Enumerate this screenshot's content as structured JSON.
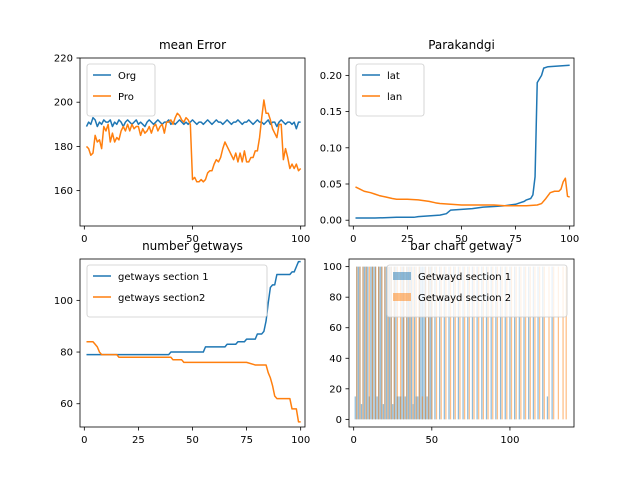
{
  "chart_data": [
    {
      "type": "line",
      "title": "mean Error",
      "xlim": [
        -2,
        102
      ],
      "ylim": [
        144,
        220
      ],
      "xticks": [
        0,
        50,
        100
      ],
      "yticks": [
        160,
        180,
        200,
        220
      ],
      "legend_position": "top-left",
      "series": [
        {
          "name": "Org",
          "color": "#1f77b4",
          "x": [
            1,
            2,
            3,
            4,
            5,
            6,
            7,
            8,
            9,
            10,
            11,
            12,
            13,
            14,
            15,
            16,
            17,
            18,
            19,
            20,
            21,
            22,
            23,
            24,
            25,
            26,
            27,
            28,
            29,
            30,
            31,
            32,
            33,
            34,
            35,
            36,
            37,
            38,
            39,
            40,
            41,
            42,
            43,
            44,
            45,
            46,
            47,
            48,
            49,
            50,
            51,
            52,
            53,
            54,
            55,
            56,
            57,
            58,
            59,
            60,
            61,
            62,
            63,
            64,
            65,
            66,
            67,
            68,
            69,
            70,
            71,
            72,
            73,
            74,
            75,
            76,
            77,
            78,
            79,
            80,
            81,
            82,
            83,
            84,
            85,
            86,
            87,
            88,
            89,
            90,
            91,
            92,
            93,
            94,
            95,
            96,
            97,
            98,
            99,
            100
          ],
          "y": [
            189,
            191,
            190,
            193,
            192,
            189,
            191,
            190,
            192,
            191,
            191,
            192,
            189,
            191,
            190,
            192,
            191,
            189,
            191,
            192,
            191,
            190,
            191,
            192,
            190,
            191,
            190,
            189,
            191,
            192,
            191,
            190,
            191,
            192,
            191,
            190,
            191,
            191,
            192,
            190,
            191,
            190,
            191,
            192,
            191,
            190,
            191,
            190,
            191,
            192,
            191,
            190,
            191,
            191,
            190,
            191,
            192,
            191,
            190,
            191,
            192,
            191,
            191,
            190,
            191,
            192,
            191,
            190,
            191,
            191,
            192,
            191,
            190,
            191,
            191,
            192,
            191,
            190,
            191,
            192,
            191,
            191,
            190,
            191,
            192,
            190,
            191,
            191,
            189,
            191,
            192,
            191,
            190,
            191,
            191,
            190,
            191,
            188,
            191,
            191
          ]
        },
        {
          "name": "Pro",
          "color": "#ff7f0e",
          "x": [
            1,
            2,
            3,
            4,
            5,
            6,
            7,
            8,
            9,
            10,
            11,
            12,
            13,
            14,
            15,
            16,
            17,
            18,
            19,
            20,
            21,
            22,
            23,
            24,
            25,
            26,
            27,
            28,
            29,
            30,
            31,
            32,
            33,
            34,
            35,
            36,
            37,
            38,
            39,
            40,
            41,
            42,
            43,
            44,
            45,
            46,
            47,
            48,
            49,
            50,
            51,
            52,
            53,
            54,
            55,
            56,
            57,
            58,
            59,
            60,
            61,
            62,
            63,
            64,
            65,
            66,
            67,
            68,
            69,
            70,
            71,
            72,
            73,
            74,
            75,
            76,
            77,
            78,
            79,
            80,
            81,
            82,
            83,
            84,
            85,
            86,
            87,
            88,
            89,
            90,
            91,
            92,
            93,
            94,
            95,
            96,
            97,
            98,
            99,
            100
          ],
          "y": [
            180,
            179,
            176,
            177,
            185,
            182,
            183,
            179,
            189,
            187,
            190,
            182,
            186,
            182,
            184,
            183,
            187,
            189,
            187,
            190,
            187,
            190,
            188,
            189,
            189,
            185,
            188,
            186,
            187,
            189,
            186,
            189,
            190,
            187,
            189,
            190,
            186,
            191,
            191,
            192,
            190,
            193,
            195,
            194,
            192,
            191,
            193,
            192,
            190,
            165,
            166,
            164,
            164,
            165,
            164,
            165,
            168,
            169,
            169,
            172,
            174,
            173,
            175,
            179,
            182,
            180,
            178,
            176,
            174,
            177,
            173,
            177,
            173,
            178,
            173,
            173,
            175,
            175,
            178,
            178,
            184,
            193,
            201,
            195,
            195,
            192,
            188,
            186,
            184,
            190,
            190,
            174,
            179,
            175,
            170,
            172,
            170,
            172,
            169,
            170
          ]
        }
      ]
    },
    {
      "type": "line",
      "title": "Parakandgi",
      "xlim": [
        -2,
        102
      ],
      "ylim": [
        -0.008,
        0.224
      ],
      "xticks": [
        0,
        25,
        50,
        75,
        100
      ],
      "ytick_labels": [
        "0.00",
        "0.05",
        "0.10",
        "0.15",
        "0.20"
      ],
      "yticks": [
        0,
        0.05,
        0.1,
        0.15,
        0.2
      ],
      "legend_position": "top-left",
      "series": [
        {
          "name": "lat",
          "color": "#1f77b4",
          "x": [
            1,
            10,
            20,
            28,
            30,
            35,
            40,
            43,
            45,
            50,
            55,
            60,
            65,
            70,
            75,
            77,
            79,
            80,
            82,
            83,
            84,
            85,
            86,
            87,
            88,
            90,
            95,
            100
          ],
          "y": [
            0.003,
            0.003,
            0.004,
            0.004,
            0.005,
            0.006,
            0.007,
            0.009,
            0.014,
            0.015,
            0.016,
            0.018,
            0.019,
            0.02,
            0.022,
            0.024,
            0.026,
            0.028,
            0.03,
            0.035,
            0.06,
            0.19,
            0.195,
            0.2,
            0.21,
            0.212,
            0.213,
            0.214
          ]
        },
        {
          "name": "lan",
          "color": "#ff7f0e",
          "x": [
            1,
            3,
            5,
            8,
            10,
            12,
            15,
            18,
            20,
            25,
            30,
            35,
            38,
            40,
            45,
            50,
            55,
            60,
            65,
            70,
            75,
            80,
            85,
            87,
            89,
            91,
            93,
            95,
            96,
            97,
            98,
            99,
            100
          ],
          "y": [
            0.046,
            0.043,
            0.04,
            0.038,
            0.036,
            0.034,
            0.032,
            0.03,
            0.029,
            0.029,
            0.028,
            0.026,
            0.024,
            0.023,
            0.022,
            0.021,
            0.021,
            0.021,
            0.021,
            0.02,
            0.02,
            0.02,
            0.021,
            0.023,
            0.03,
            0.038,
            0.04,
            0.04,
            0.043,
            0.053,
            0.058,
            0.033,
            0.032
          ]
        }
      ]
    },
    {
      "type": "line",
      "title": "number getways",
      "xlim": [
        -2,
        102
      ],
      "ylim": [
        51,
        116
      ],
      "xticks": [
        0,
        25,
        50,
        75,
        100
      ],
      "yticks": [
        60,
        80,
        100
      ],
      "legend_position": "top-left",
      "series": [
        {
          "name": "getways section 1",
          "color": "#1f77b4",
          "x": [
            1,
            10,
            20,
            30,
            39,
            40,
            50,
            55,
            56,
            60,
            65,
            66,
            70,
            71,
            74,
            75,
            79,
            80,
            81,
            82,
            83,
            84,
            85,
            86,
            87,
            88,
            89,
            90,
            91,
            92,
            95,
            96,
            97,
            98,
            99,
            100
          ],
          "y": [
            79,
            79,
            79,
            79,
            79,
            80,
            80,
            80,
            82,
            82,
            82,
            83,
            83,
            84,
            84,
            85,
            85,
            87,
            87,
            87,
            88,
            92,
            99,
            105,
            106,
            106,
            110,
            110,
            110,
            110,
            110,
            111,
            111,
            113,
            115,
            115
          ]
        },
        {
          "name": "getways section2",
          "color": "#ff7f0e",
          "x": [
            1,
            3,
            4,
            5,
            6,
            7,
            8,
            10,
            15,
            16,
            20,
            25,
            30,
            35,
            38,
            40,
            41,
            45,
            46,
            50,
            55,
            60,
            65,
            70,
            75,
            79,
            80,
            83,
            84,
            85,
            86,
            87,
            88,
            89,
            90,
            92,
            95,
            96,
            98,
            99,
            100
          ],
          "y": [
            84,
            84,
            84,
            83,
            82,
            80,
            79,
            79,
            79,
            78,
            78,
            78,
            78,
            78,
            78,
            78,
            77,
            77,
            76,
            76,
            76,
            76,
            76,
            76,
            76,
            75,
            75,
            75,
            75,
            72,
            70,
            67,
            63,
            62,
            62,
            62,
            62,
            58,
            58,
            53,
            53
          ]
        }
      ]
    },
    {
      "type": "bar",
      "title": "bar chart getway",
      "xlim": [
        -3,
        141
      ],
      "ylim": [
        -5,
        105
      ],
      "xticks": [
        0,
        50,
        100
      ],
      "yticks": [
        0,
        20,
        40,
        60,
        80,
        100
      ],
      "legend_position": "top-right",
      "series": [
        {
          "name": "Getwayd section 1",
          "color": "#1f77b4",
          "opacity": 0.5,
          "x": [
            1,
            2,
            3,
            4,
            5,
            6,
            7,
            8,
            9,
            10,
            11,
            12,
            13,
            14,
            15,
            16,
            17,
            18,
            19,
            20,
            21,
            22,
            23,
            24,
            25,
            26,
            27,
            28,
            29,
            30,
            31,
            32,
            33,
            34,
            35,
            36,
            37,
            38,
            39,
            40,
            41,
            42,
            43,
            44,
            45,
            46,
            47,
            48,
            49,
            50,
            52,
            55,
            58,
            61,
            64,
            67,
            70,
            73,
            76,
            79,
            82,
            85,
            88,
            91,
            94,
            97,
            100,
            103,
            106,
            109,
            112,
            115,
            118,
            121,
            124,
            127
          ],
          "values": [
            15,
            100,
            100,
            100,
            10,
            100,
            100,
            100,
            100,
            15,
            100,
            100,
            100,
            100,
            15,
            100,
            100,
            100,
            10,
            100,
            100,
            100,
            100,
            100,
            10,
            100,
            100,
            15,
            15,
            15,
            100,
            100,
            15,
            100,
            100,
            100,
            100,
            10,
            100,
            15,
            15,
            100,
            100,
            100,
            100,
            100,
            15,
            100,
            100,
            100,
            100,
            100,
            100,
            100,
            100,
            100,
            100,
            100,
            100,
            100,
            100,
            100,
            100,
            100,
            100,
            100,
            100,
            100,
            100,
            100,
            100,
            100,
            100,
            100,
            15,
            100
          ]
        },
        {
          "name": "Getwayd section 2",
          "color": "#ff7f0e",
          "opacity": 0.5,
          "x": [
            2,
            4,
            6,
            8,
            10,
            12,
            14,
            16,
            18,
            20,
            22,
            24,
            26,
            28,
            30,
            32,
            34,
            36,
            38,
            40,
            42,
            44,
            46,
            48,
            50,
            53,
            56,
            59,
            62,
            65,
            68,
            71,
            74,
            77,
            80,
            83,
            86,
            89,
            92,
            95,
            98,
            101,
            104,
            107,
            110,
            113,
            116,
            119,
            122,
            125,
            128,
            131,
            134,
            136
          ],
          "values": [
            100,
            100,
            100,
            100,
            100,
            100,
            100,
            100,
            100,
            100,
            100,
            100,
            100,
            100,
            100,
            100,
            100,
            100,
            100,
            100,
            100,
            15,
            100,
            100,
            100,
            100,
            100,
            100,
            100,
            100,
            100,
            100,
            100,
            100,
            100,
            100,
            100,
            100,
            100,
            100,
            100,
            100,
            100,
            100,
            100,
            100,
            100,
            100,
            100,
            100,
            100,
            100,
            100,
            100
          ]
        }
      ]
    }
  ]
}
